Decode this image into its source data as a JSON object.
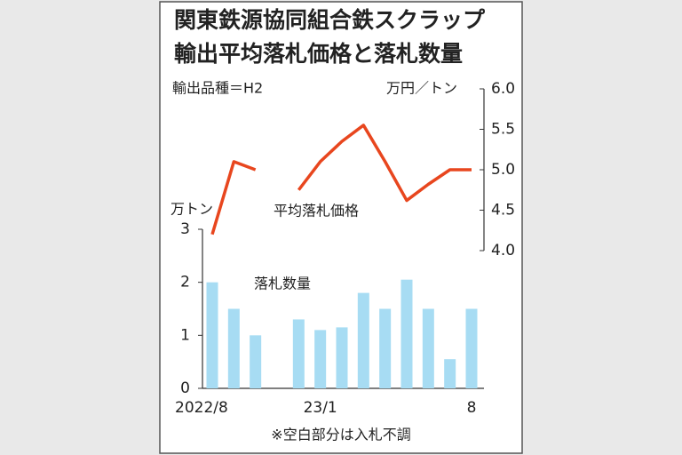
{
  "chart_data": {
    "type": "bar_line",
    "title": [
      "関東鉄源協同組合鉄スクラップ",
      "輸出平均落札価格と落札数量"
    ],
    "subtitle": "輸出品種＝H2",
    "y_label": "万トン",
    "y2_label": "万円／トン",
    "footnote": "※空白部分は入札不調",
    "categories": [
      "2022/8",
      null,
      null,
      null,
      null,
      "23/1",
      null,
      null,
      null,
      null,
      null,
      null,
      "8"
    ],
    "series": [
      {
        "name": "落札数量",
        "type": "bar",
        "axis": "y",
        "color": "#a7dcf3",
        "values": [
          2.0,
          1.5,
          1.0,
          null,
          1.3,
          1.1,
          1.15,
          1.8,
          1.5,
          2.05,
          1.5,
          0.55,
          1.5
        ]
      },
      {
        "name": "平均落札価格",
        "type": "line",
        "axis": "y2",
        "color": "#e8461e",
        "values": [
          4.2,
          5.1,
          5.0,
          null,
          4.75,
          5.1,
          5.35,
          5.55,
          5.1,
          4.62,
          4.82,
          5.0,
          5.0
        ]
      }
    ],
    "ylim": [
      0,
      3
    ],
    "yticks": [
      0,
      1,
      2,
      3
    ],
    "y2lim": [
      4,
      6
    ],
    "y2ticks": [
      {
        "value": 4,
        "label": "4.0"
      },
      {
        "value": 4.5,
        "label": "4.5"
      },
      {
        "value": 5,
        "label": "5.0"
      },
      {
        "value": 5.5,
        "label": "5.5"
      },
      {
        "value": 6,
        "label": "6.0"
      }
    ]
  }
}
